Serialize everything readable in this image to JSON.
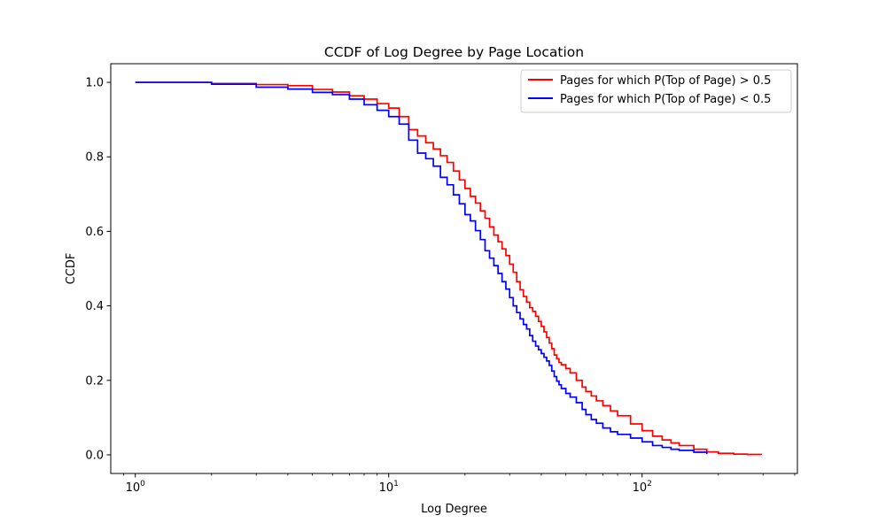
{
  "chart_data": {
    "type": "line",
    "title": "CCDF of Log Degree by Page Location",
    "xlabel": "Log Degree",
    "ylabel": "CCDF",
    "xscale": "log",
    "xlim": [
      0.8,
      410
    ],
    "ylim": [
      -0.05,
      1.05
    ],
    "xticks": [
      {
        "value": 1,
        "base": "10",
        "exp": "0"
      },
      {
        "value": 10,
        "base": "10",
        "exp": "1"
      },
      {
        "value": 100,
        "base": "10",
        "exp": "2"
      }
    ],
    "yticks": [
      {
        "value": 0.0,
        "label": "0.0"
      },
      {
        "value": 0.2,
        "label": "0.2"
      },
      {
        "value": 0.4,
        "label": "0.4"
      },
      {
        "value": 0.6,
        "label": "0.6"
      },
      {
        "value": 0.8,
        "label": "0.8"
      },
      {
        "value": 1.0,
        "label": "1.0"
      }
    ],
    "grid": false,
    "legend_position": "upper right",
    "series": [
      {
        "name": "Pages for which P(Top of Page) > 0.5",
        "color": "#ff0000",
        "drawstyle": "steps",
        "x": [
          1,
          2,
          3,
          4,
          5,
          6,
          7,
          8,
          9,
          10,
          11,
          12,
          13,
          14,
          15,
          16,
          17,
          18,
          19,
          20,
          21,
          22,
          23,
          24,
          25,
          26,
          27,
          28,
          29,
          30,
          31,
          32,
          33,
          34,
          35,
          36,
          37,
          38,
          39,
          40,
          41,
          42,
          43,
          44,
          45,
          46,
          47,
          48,
          50,
          52,
          55,
          58,
          60,
          63,
          66,
          70,
          75,
          80,
          90,
          100,
          110,
          120,
          130,
          140,
          160,
          180,
          200,
          230,
          260,
          295
        ],
        "y": [
          1.0,
          0.997,
          0.994,
          0.991,
          0.981,
          0.974,
          0.964,
          0.955,
          0.943,
          0.931,
          0.908,
          0.873,
          0.856,
          0.838,
          0.821,
          0.803,
          0.785,
          0.762,
          0.738,
          0.715,
          0.694,
          0.676,
          0.655,
          0.635,
          0.612,
          0.59,
          0.572,
          0.553,
          0.535,
          0.512,
          0.49,
          0.465,
          0.443,
          0.425,
          0.41,
          0.395,
          0.385,
          0.372,
          0.358,
          0.345,
          0.33,
          0.315,
          0.3,
          0.285,
          0.268,
          0.258,
          0.248,
          0.242,
          0.232,
          0.22,
          0.2,
          0.182,
          0.17,
          0.158,
          0.145,
          0.132,
          0.118,
          0.105,
          0.083,
          0.065,
          0.05,
          0.04,
          0.032,
          0.025,
          0.015,
          0.008,
          0.004,
          0.002,
          0.001,
          0.0
        ]
      },
      {
        "name": "Pages for which P(Top of Page) < 0.5",
        "color": "#0000ff",
        "drawstyle": "steps",
        "x": [
          1,
          2,
          3,
          4,
          5,
          6,
          7,
          8,
          9,
          10,
          11,
          12,
          13,
          14,
          15,
          16,
          17,
          18,
          19,
          20,
          21,
          22,
          23,
          24,
          25,
          26,
          27,
          28,
          29,
          30,
          31,
          32,
          33,
          34,
          35,
          36,
          37,
          38,
          39,
          40,
          41,
          42,
          43,
          44,
          45,
          46,
          47,
          48,
          50,
          52,
          55,
          58,
          60,
          63,
          66,
          70,
          75,
          80,
          90,
          100,
          110,
          120,
          130,
          140,
          160,
          180
        ],
        "y": [
          1.0,
          0.995,
          0.987,
          0.982,
          0.973,
          0.967,
          0.955,
          0.94,
          0.925,
          0.908,
          0.888,
          0.845,
          0.81,
          0.795,
          0.775,
          0.745,
          0.725,
          0.698,
          0.674,
          0.645,
          0.628,
          0.602,
          0.578,
          0.548,
          0.528,
          0.508,
          0.487,
          0.465,
          0.445,
          0.422,
          0.4,
          0.382,
          0.365,
          0.35,
          0.338,
          0.32,
          0.305,
          0.292,
          0.282,
          0.272,
          0.262,
          0.252,
          0.24,
          0.225,
          0.21,
          0.198,
          0.188,
          0.178,
          0.165,
          0.155,
          0.14,
          0.122,
          0.108,
          0.095,
          0.085,
          0.072,
          0.062,
          0.055,
          0.045,
          0.035,
          0.025,
          0.02,
          0.015,
          0.012,
          0.007,
          0.002
        ]
      }
    ]
  }
}
